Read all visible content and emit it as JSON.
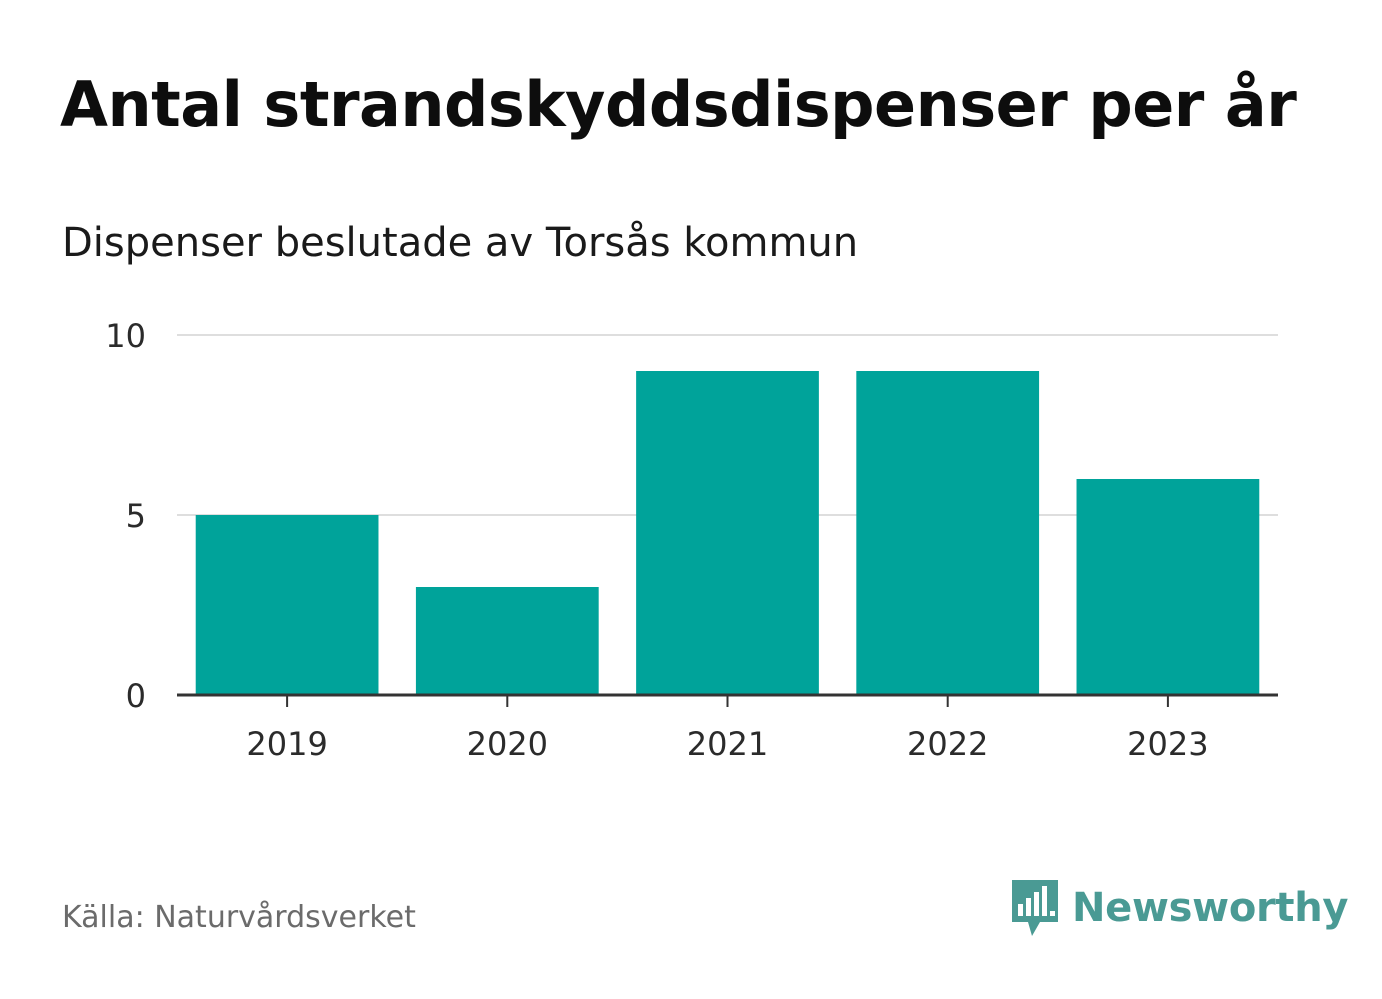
{
  "chart_data": {
    "type": "bar",
    "title": "Antal strandskyddsdispenser per år",
    "subtitle": "Dispenser beslutade av Torsås kommun",
    "categories": [
      "2019",
      "2020",
      "2021",
      "2022",
      "2023"
    ],
    "values": [
      5,
      3,
      9,
      9,
      6
    ],
    "xlabel": "",
    "ylabel": "",
    "ylim": [
      0,
      10
    ],
    "yticks": [
      0,
      5,
      10
    ],
    "grid": true,
    "bar_color": "#00a39a"
  },
  "footer": {
    "source": "Källa: Naturvårdsverket",
    "brand": "Newsworthy",
    "brand_icon": "newsworthy-logo-icon",
    "brand_color": "#4a9a94"
  }
}
